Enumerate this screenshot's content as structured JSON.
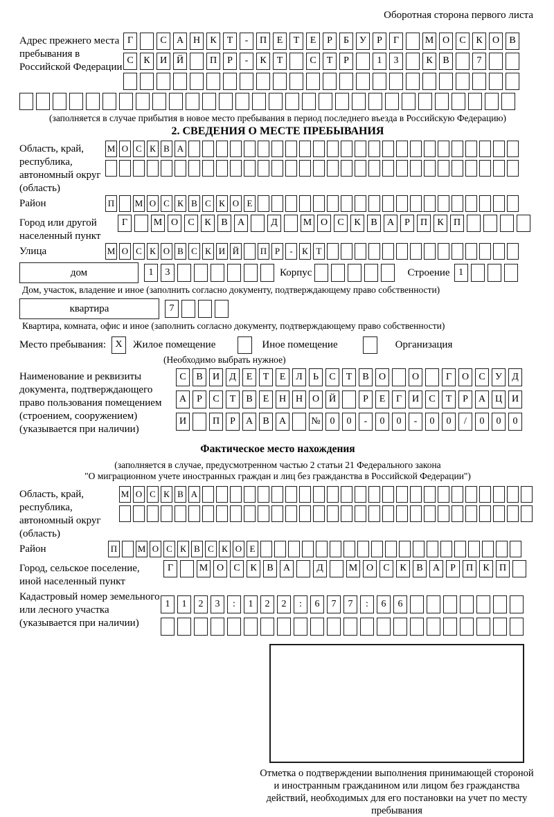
{
  "page": {
    "header_note": "Оборотная сторона первого листа"
  },
  "prev_address": {
    "label": "Адрес прежнего места пребывания в Российской Федерации",
    "row1": [
      "Г",
      "",
      "С",
      "А",
      "Н",
      "К",
      "Т",
      "-",
      "П",
      "Е",
      "Т",
      "Е",
      "Р",
      "Б",
      "У",
      "Р",
      "Г",
      "",
      "М",
      "О",
      "С",
      "К",
      "О",
      "В"
    ],
    "row2": [
      "С",
      "К",
      "И",
      "Й",
      "",
      "П",
      "Р",
      "-",
      "К",
      "Т",
      "",
      "С",
      "Т",
      "Р",
      "",
      "1",
      "3",
      "",
      "К",
      "В",
      "",
      "7",
      "",
      ""
    ],
    "row3": [
      "",
      "",
      "",
      "",
      "",
      "",
      "",
      "",
      "",
      "",
      "",
      "",
      "",
      "",
      "",
      "",
      "",
      "",
      "",
      "",
      "",
      "",
      "",
      ""
    ],
    "row4": [
      "",
      "",
      "",
      "",
      "",
      "",
      "",
      "",
      "",
      "",
      "",
      "",
      "",
      "",
      "",
      "",
      "",
      "",
      "",
      "",
      "",
      "",
      "",
      "",
      "",
      "",
      "",
      "",
      "",
      ""
    ],
    "caption": "(заполняется в случае прибытия в новое место пребывания в период последнего въезда в Российскую Федерацию)"
  },
  "section2": {
    "title": "2. СВЕДЕНИЯ О МЕСТЕ ПРЕБЫВАНИЯ",
    "region": {
      "label": "Область, край, республика, автономный округ (область)",
      "row1": [
        "М",
        "О",
        "С",
        "К",
        "В",
        "А",
        "",
        "",
        "",
        "",
        "",
        "",
        "",
        "",
        "",
        "",
        "",
        "",
        "",
        "",
        "",
        "",
        "",
        "",
        "",
        "",
        "",
        "",
        "",
        ""
      ],
      "row2": [
        "",
        "",
        "",
        "",
        "",
        "",
        "",
        "",
        "",
        "",
        "",
        "",
        "",
        "",
        "",
        "",
        "",
        "",
        "",
        "",
        "",
        "",
        "",
        "",
        "",
        "",
        "",
        "",
        "",
        ""
      ]
    },
    "district": {
      "label": "Район",
      "row": [
        "П",
        "",
        "М",
        "О",
        "С",
        "К",
        "В",
        "С",
        "К",
        "О",
        "Е",
        "",
        "",
        "",
        "",
        "",
        "",
        "",
        "",
        "",
        "",
        "",
        "",
        "",
        "",
        "",
        "",
        "",
        "",
        ""
      ]
    },
    "city": {
      "label": "Город или другой населенный пункт",
      "row": [
        "Г",
        "",
        "М",
        "О",
        "С",
        "К",
        "В",
        "А",
        "",
        "Д",
        "",
        "М",
        "О",
        "С",
        "К",
        "В",
        "А",
        "Р",
        "П",
        "К",
        "П",
        "",
        "",
        "",
        ""
      ]
    },
    "street": {
      "label": "Улица",
      "row": [
        "М",
        "О",
        "С",
        "К",
        "О",
        "В",
        "С",
        "К",
        "И",
        "Й",
        "",
        "П",
        "Р",
        "-",
        "К",
        "Т",
        "",
        "",
        "",
        "",
        "",
        "",
        "",
        "",
        "",
        "",
        "",
        "",
        "",
        ""
      ]
    },
    "house": {
      "box_label": "дом",
      "cells": [
        "1",
        "3",
        "",
        "",
        "",
        "",
        "",
        ""
      ],
      "korpus_label": "Корпус",
      "korpus_cells": [
        "",
        "",
        "",
        "",
        ""
      ],
      "stroenie_label": "Строение",
      "stroenie_cells": [
        "1",
        "",
        "",
        ""
      ],
      "caption": "Дом, участок, владение и иное (заполнить согласно документу, подтверждающему право собственности)"
    },
    "apartment": {
      "box_label": "квартира",
      "cells": [
        "7",
        "",
        "",
        ""
      ],
      "caption": "Квартира, комната, офис и иное (заполнить согласно документу, подтверждающему право собственности)"
    },
    "stay_type": {
      "label": "Место пребывания:",
      "opt1_checked": "X",
      "opt1_label": "Жилое помещение",
      "opt2_checked": "",
      "opt2_label": "Иное помещение",
      "opt3_checked": "",
      "opt3_label": "Организация",
      "hint": "(Необходимо выбрать нужное)"
    },
    "document": {
      "label": "Наименование и реквизиты документа, подтверждающего право пользования помещением (строением, сооружением) (указывается при наличии)",
      "row1": [
        "С",
        "В",
        "И",
        "Д",
        "Е",
        "Т",
        "Е",
        "Л",
        "Ь",
        "С",
        "Т",
        "В",
        "О",
        "",
        "О",
        "",
        "Г",
        "О",
        "С",
        "У",
        "Д"
      ],
      "row2": [
        "А",
        "Р",
        "С",
        "Т",
        "В",
        "Е",
        "Н",
        "Н",
        "О",
        "Й",
        "",
        "Р",
        "Е",
        "Г",
        "И",
        "С",
        "Т",
        "Р",
        "А",
        "Ц",
        "И"
      ],
      "row3": [
        "И",
        "",
        "П",
        "Р",
        "А",
        "В",
        "А",
        "",
        "№",
        "0",
        "0",
        "-",
        "0",
        "0",
        "-",
        "0",
        "0",
        "/",
        "0",
        "0",
        "0"
      ]
    }
  },
  "actual_location": {
    "title": "Фактическое место нахождения",
    "caption1": "(заполняется в случае, предусмотренном частью 2 статьи 21 Федерального закона",
    "caption2": "\"О миграционном учете иностранных граждан и лиц без гражданства в Российской Федерации\")",
    "region": {
      "label": "Область, край, республика, автономный округ (область)",
      "row1": [
        "М",
        "О",
        "С",
        "К",
        "В",
        "А",
        "",
        "",
        "",
        "",
        "",
        "",
        "",
        "",
        "",
        "",
        "",
        "",
        "",
        "",
        "",
        "",
        "",
        "",
        "",
        "",
        "",
        "",
        "",
        ""
      ],
      "row2": [
        "",
        "",
        "",
        "",
        "",
        "",
        "",
        "",
        "",
        "",
        "",
        "",
        "",
        "",
        "",
        "",
        "",
        "",
        "",
        "",
        "",
        "",
        "",
        "",
        "",
        "",
        "",
        "",
        "",
        ""
      ]
    },
    "district": {
      "label": "Район",
      "row": [
        "П",
        "",
        "М",
        "О",
        "С",
        "К",
        "В",
        "С",
        "К",
        "О",
        "Е",
        "",
        "",
        "",
        "",
        "",
        "",
        "",
        "",
        "",
        "",
        "",
        "",
        "",
        "",
        "",
        "",
        "",
        "",
        ""
      ]
    },
    "city": {
      "label": "Город, сельское поселение, иной населенный пункт",
      "row": [
        "Г",
        "",
        "М",
        "О",
        "С",
        "К",
        "В",
        "А",
        "",
        "Д",
        "",
        "М",
        "О",
        "С",
        "К",
        "В",
        "А",
        "Р",
        "П",
        "К",
        "П",
        ""
      ]
    },
    "cadastre": {
      "label": "Кадастровый номер земельного или лесного участка (указывается при наличии)",
      "row1": [
        "1",
        "1",
        "2",
        "3",
        ":",
        "1",
        "2",
        "2",
        ":",
        "6",
        "7",
        "7",
        ":",
        "6",
        "6",
        "",
        "",
        "",
        "",
        "",
        "",
        ""
      ],
      "row2": [
        "",
        "",
        "",
        "",
        "",
        "",
        "",
        "",
        "",
        "",
        "",
        "",
        "",
        "",
        "",
        "",
        "",
        "",
        "",
        "",
        "",
        ""
      ]
    },
    "stamp_caption": "Отметка о подтверждении выполнения принимающей стороной и иностранным гражданином или лицом без гражданства действий, необходимых для его постановки на учет по месту пребывания"
  }
}
